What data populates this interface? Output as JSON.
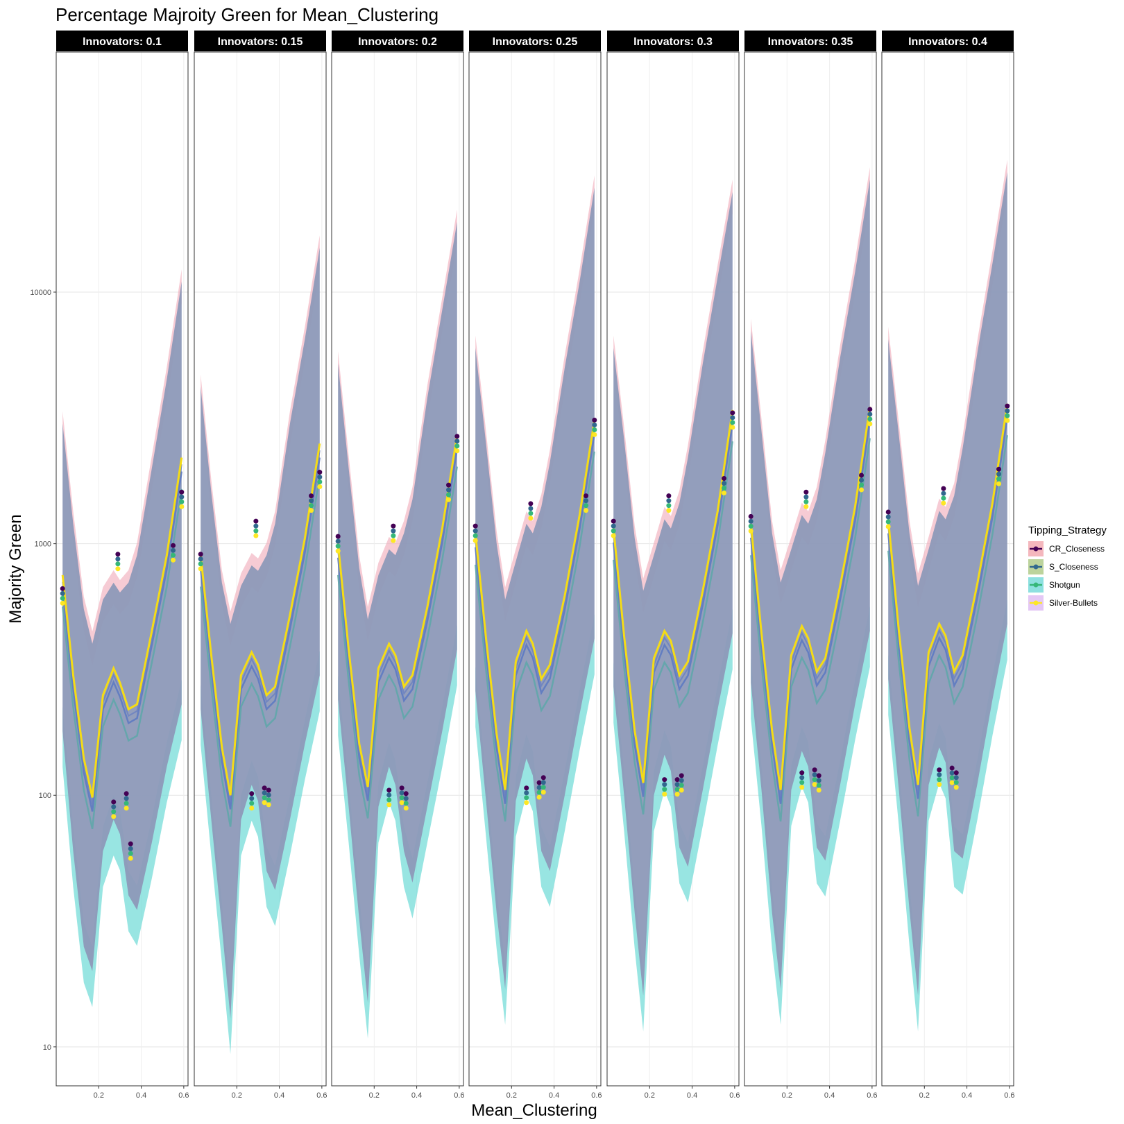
{
  "chart_data": {
    "type": "line",
    "title": "Percentage Majroity Green for Mean_Clustering",
    "xlabel": "Mean_Clustering",
    "ylabel": "Majority Green",
    "y_scale": "log10",
    "ylim": [
      7,
      90000
    ],
    "xlim": [
      0.0,
      0.62
    ],
    "x_ticks": [
      0.2,
      0.4,
      0.6
    ],
    "x_tick_labels": [
      "0.2",
      "0.4",
      "0.6"
    ],
    "y_ticks": [
      10,
      100,
      1000,
      10000
    ],
    "y_tick_labels": [
      "10",
      "100",
      "1000",
      "10000"
    ],
    "facet_label_prefix": "Innovators: ",
    "facets": [
      "0.1",
      "0.15",
      "0.2",
      "0.25",
      "0.3",
      "0.35",
      "0.4"
    ],
    "x": [
      0.03,
      0.08,
      0.13,
      0.17,
      0.22,
      0.27,
      0.3,
      0.34,
      0.38,
      0.45,
      0.52,
      0.59
    ],
    "legend": {
      "title": "Tipping_Strategy",
      "entries": [
        "CR_Closeness",
        "S_Closeness",
        "Shotgun",
        "Silver-Bullets"
      ],
      "position": "right"
    },
    "colors": {
      "band": "#8d99b8",
      "band_low": "#76dcd8",
      "yellow_line": "#f5dc15",
      "blue_line": "#5a78c2",
      "teal_line": "#5aa8a8"
    },
    "strategies": [
      {
        "name": "CR_Closeness",
        "line_color": "#440154",
        "fill_color": "#f4b7bd"
      },
      {
        "name": "S_Closeness",
        "line_color": "#31688e",
        "fill_color": "#bcd39c"
      },
      {
        "name": "Shotgun",
        "line_color": "#35b779",
        "fill_color": "#8de0e0"
      },
      {
        "name": "Silver-Bullets",
        "line_color": "#fde725",
        "fill_color": "#e4c8f5"
      }
    ],
    "series": [
      {
        "facet": "0.1",
        "fit": [
          750,
          300,
          140,
          98,
          250,
          320,
          280,
          220,
          230,
          450,
          900,
          2200
        ],
        "lower": [
          180,
          60,
          25,
          20,
          60,
          80,
          70,
          40,
          35,
          65,
          130,
          230
        ],
        "upper": [
          3000,
          1200,
          550,
          400,
          600,
          700,
          640,
          700,
          900,
          2000,
          4500,
          11000
        ],
        "points": [
          [
            0.03,
            620
          ],
          [
            0.27,
            88
          ],
          [
            0.29,
            850
          ],
          [
            0.33,
            95
          ],
          [
            0.35,
            60
          ],
          [
            0.55,
            920
          ],
          [
            0.59,
            1500
          ]
        ]
      },
      {
        "facet": "0.15",
        "fit": [
          900,
          360,
          155,
          100,
          300,
          370,
          330,
          250,
          270,
          520,
          1050,
          2500
        ],
        "lower": [
          220,
          80,
          30,
          13,
          80,
          110,
          95,
          50,
          42,
          80,
          160,
          300
        ],
        "upper": [
          4200,
          1600,
          700,
          480,
          680,
          820,
          780,
          900,
          1200,
          3000,
          6500,
          15000
        ],
        "points": [
          [
            0.03,
            850
          ],
          [
            0.27,
            95
          ],
          [
            0.29,
            1150
          ],
          [
            0.33,
            100
          ],
          [
            0.35,
            98
          ],
          [
            0.55,
            1450
          ],
          [
            0.59,
            1800
          ]
        ]
      },
      {
        "facet": "0.2",
        "fit": [
          1000,
          380,
          160,
          108,
          320,
          400,
          360,
          270,
          300,
          560,
          1150,
          2700
        ],
        "lower": [
          240,
          90,
          32,
          15,
          90,
          130,
          110,
          60,
          45,
          90,
          180,
          380
        ],
        "upper": [
          5200,
          2000,
          800,
          500,
          750,
          950,
          900,
          1100,
          1500,
          3800,
          8500,
          19000
        ],
        "points": [
          [
            0.03,
            1000
          ],
          [
            0.27,
            98
          ],
          [
            0.29,
            1100
          ],
          [
            0.33,
            100
          ],
          [
            0.35,
            95
          ],
          [
            0.55,
            1600
          ],
          [
            0.59,
            2500
          ]
        ]
      },
      {
        "facet": "0.25",
        "fit": [
          1100,
          420,
          175,
          105,
          340,
          450,
          400,
          290,
          330,
          620,
          1300,
          3100
        ],
        "lower": [
          260,
          95,
          34,
          17,
          95,
          140,
          120,
          60,
          50,
          100,
          210,
          420
        ],
        "upper": [
          6000,
          2500,
          1000,
          600,
          850,
          1200,
          1100,
          1400,
          2100,
          5000,
          11000,
          26000
        ],
        "points": [
          [
            0.03,
            1100
          ],
          [
            0.27,
            100
          ],
          [
            0.29,
            1350
          ],
          [
            0.33,
            105
          ],
          [
            0.35,
            110
          ],
          [
            0.55,
            1450
          ],
          [
            0.59,
            2900
          ]
        ]
      },
      {
        "facet": "0.3",
        "fit": [
          1150,
          430,
          180,
          112,
          350,
          450,
          410,
          300,
          340,
          650,
          1350,
          3400
        ],
        "lower": [
          270,
          100,
          34,
          16,
          100,
          145,
          125,
          62,
          52,
          105,
          220,
          440
        ],
        "upper": [
          6000,
          2600,
          1050,
          650,
          900,
          1250,
          1150,
          1450,
          2200,
          5200,
          11500,
          25000
        ],
        "points": [
          [
            0.03,
            1150
          ],
          [
            0.27,
            108
          ],
          [
            0.29,
            1450
          ],
          [
            0.33,
            108
          ],
          [
            0.35,
            112
          ],
          [
            0.55,
            1700
          ],
          [
            0.59,
            3100
          ]
        ]
      },
      {
        "facet": "0.35",
        "fit": [
          1200,
          440,
          180,
          105,
          360,
          470,
          420,
          310,
          350,
          680,
          1400,
          3500
        ],
        "lower": [
          280,
          105,
          34,
          17,
          105,
          150,
          130,
          62,
          55,
          110,
          230,
          450
        ],
        "upper": [
          7000,
          2800,
          1100,
          700,
          950,
          1300,
          1200,
          1500,
          2300,
          5500,
          12000,
          28000
        ],
        "points": [
          [
            0.03,
            1200
          ],
          [
            0.27,
            115
          ],
          [
            0.29,
            1500
          ],
          [
            0.33,
            118
          ],
          [
            0.35,
            112
          ],
          [
            0.55,
            1750
          ],
          [
            0.59,
            3200
          ]
        ]
      },
      {
        "facet": "0.4",
        "fit": [
          1250,
          450,
          185,
          110,
          370,
          480,
          430,
          310,
          360,
          700,
          1450,
          3600
        ],
        "lower": [
          290,
          105,
          35,
          16,
          110,
          155,
          135,
          60,
          56,
          112,
          240,
          480
        ],
        "upper": [
          6500,
          2700,
          1100,
          680,
          950,
          1350,
          1250,
          1550,
          2400,
          5800,
          13000,
          30000
        ],
        "points": [
          [
            0.03,
            1250
          ],
          [
            0.27,
            118
          ],
          [
            0.29,
            1550
          ],
          [
            0.33,
            120
          ],
          [
            0.35,
            115
          ],
          [
            0.55,
            1850
          ],
          [
            0.59,
            3300
          ]
        ]
      }
    ]
  }
}
